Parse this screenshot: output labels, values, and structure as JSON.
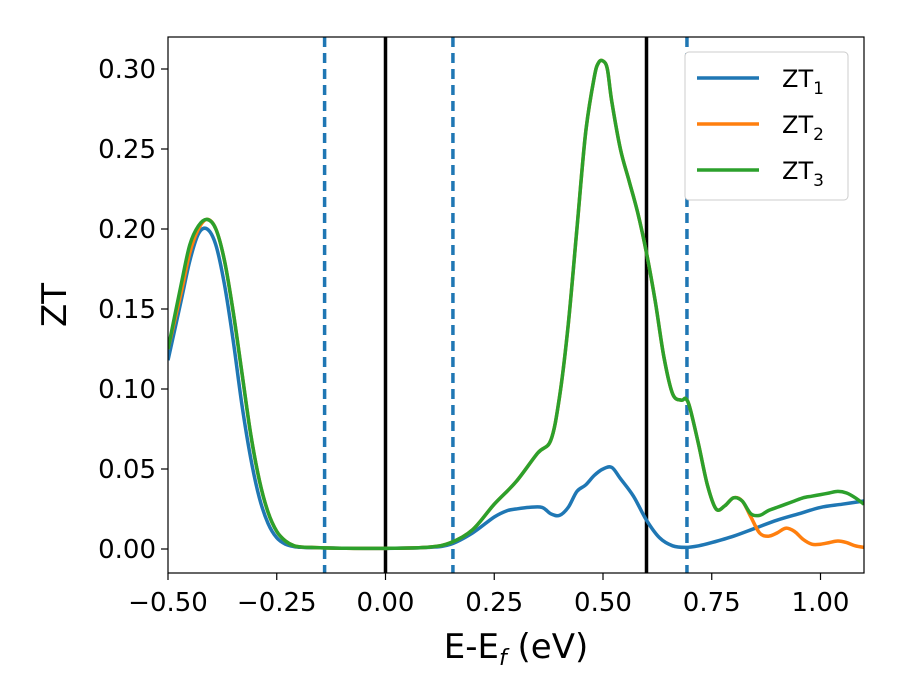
{
  "chart_data": {
    "type": "line",
    "title": "",
    "xlabel": {
      "base": "E-E",
      "sub": "f",
      "suffix": " (eV)"
    },
    "ylabel": "ZT",
    "xlim": [
      -0.5,
      1.1
    ],
    "ylim": [
      -0.015,
      0.32
    ],
    "grid": false,
    "legend_position": "top-right",
    "x_ticks": [
      -0.5,
      -0.25,
      0.0,
      0.25,
      0.5,
      0.75,
      1.0
    ],
    "x_tick_labels": [
      "−0.50",
      "−0.25",
      "0.00",
      "0.25",
      "0.50",
      "0.75",
      "1.00"
    ],
    "y_ticks": [
      0.0,
      0.05,
      0.1,
      0.15,
      0.2,
      0.25,
      0.3
    ],
    "y_tick_labels": [
      "0.00",
      "0.05",
      "0.10",
      "0.15",
      "0.20",
      "0.25",
      "0.30"
    ],
    "series": [
      {
        "name": "ZT",
        "sub": "1",
        "color": "#1f77b4",
        "x": [
          -0.5,
          -0.47,
          -0.45,
          -0.43,
          -0.41,
          -0.39,
          -0.37,
          -0.35,
          -0.33,
          -0.31,
          -0.29,
          -0.27,
          -0.25,
          -0.23,
          -0.21,
          -0.19,
          -0.17,
          -0.15,
          -0.12,
          -0.1,
          0.0,
          0.1,
          0.15,
          0.2,
          0.25,
          0.28,
          0.3,
          0.33,
          0.36,
          0.38,
          0.4,
          0.42,
          0.44,
          0.46,
          0.48,
          0.5,
          0.52,
          0.54,
          0.57,
          0.6,
          0.63,
          0.66,
          0.69,
          0.72,
          0.75,
          0.8,
          0.85,
          0.9,
          0.95,
          1.0,
          1.05,
          1.1
        ],
        "y": [
          0.118,
          0.155,
          0.18,
          0.197,
          0.2,
          0.19,
          0.165,
          0.13,
          0.09,
          0.057,
          0.032,
          0.016,
          0.007,
          0.003,
          0.0015,
          0.001,
          0.0008,
          0.0008,
          0.0006,
          0.0005,
          0.0004,
          0.001,
          0.003,
          0.01,
          0.02,
          0.024,
          0.025,
          0.026,
          0.026,
          0.022,
          0.021,
          0.026,
          0.036,
          0.04,
          0.046,
          0.05,
          0.051,
          0.044,
          0.033,
          0.018,
          0.007,
          0.002,
          0.001,
          0.002,
          0.004,
          0.008,
          0.013,
          0.018,
          0.022,
          0.026,
          0.028,
          0.03
        ]
      },
      {
        "name": "ZT",
        "sub": "2",
        "color": "#ff7f0e",
        "x": [
          -0.5,
          -0.47,
          -0.45,
          -0.43,
          -0.41,
          -0.39,
          -0.37,
          -0.35,
          -0.33,
          -0.31,
          -0.29,
          -0.27,
          -0.25,
          -0.23,
          -0.21,
          -0.19,
          -0.17,
          -0.15,
          -0.1,
          0.0,
          0.1,
          0.15,
          0.2,
          0.25,
          0.3,
          0.35,
          0.38,
          0.4,
          0.42,
          0.44,
          0.46,
          0.48,
          0.49,
          0.5,
          0.51,
          0.52,
          0.54,
          0.56,
          0.58,
          0.6,
          0.62,
          0.64,
          0.66,
          0.68,
          0.69,
          0.7,
          0.72,
          0.74,
          0.76,
          0.78,
          0.8,
          0.82,
          0.84,
          0.86,
          0.88,
          0.9,
          0.92,
          0.94,
          0.96,
          0.98,
          1.0,
          1.02,
          1.04,
          1.06,
          1.08,
          1.1
        ],
        "y": [
          0.125,
          0.16,
          0.185,
          0.2,
          0.206,
          0.2,
          0.18,
          0.148,
          0.11,
          0.072,
          0.043,
          0.023,
          0.011,
          0.005,
          0.002,
          0.0012,
          0.001,
          0.0008,
          0.0005,
          0.0004,
          0.0012,
          0.004,
          0.012,
          0.028,
          0.042,
          0.06,
          0.068,
          0.095,
          0.14,
          0.2,
          0.26,
          0.295,
          0.304,
          0.305,
          0.3,
          0.28,
          0.25,
          0.23,
          0.21,
          0.185,
          0.155,
          0.12,
          0.097,
          0.093,
          0.094,
          0.088,
          0.065,
          0.04,
          0.025,
          0.027,
          0.032,
          0.03,
          0.02,
          0.01,
          0.008,
          0.01,
          0.013,
          0.011,
          0.006,
          0.003,
          0.003,
          0.004,
          0.005,
          0.004,
          0.002,
          0.001
        ]
      },
      {
        "name": "ZT",
        "sub": "3",
        "color": "#2ca02c",
        "x": [
          -0.5,
          -0.47,
          -0.45,
          -0.43,
          -0.41,
          -0.39,
          -0.37,
          -0.35,
          -0.33,
          -0.31,
          -0.29,
          -0.27,
          -0.25,
          -0.23,
          -0.21,
          -0.19,
          -0.17,
          -0.15,
          -0.1,
          0.0,
          0.1,
          0.15,
          0.2,
          0.25,
          0.3,
          0.35,
          0.38,
          0.4,
          0.42,
          0.44,
          0.46,
          0.48,
          0.49,
          0.5,
          0.51,
          0.52,
          0.54,
          0.56,
          0.58,
          0.6,
          0.62,
          0.64,
          0.66,
          0.68,
          0.69,
          0.7,
          0.72,
          0.74,
          0.76,
          0.78,
          0.8,
          0.82,
          0.84,
          0.86,
          0.88,
          0.9,
          0.92,
          0.94,
          0.96,
          0.98,
          1.0,
          1.02,
          1.04,
          1.06,
          1.08,
          1.1
        ],
        "y": [
          0.125,
          0.165,
          0.19,
          0.202,
          0.206,
          0.2,
          0.18,
          0.148,
          0.11,
          0.072,
          0.043,
          0.023,
          0.011,
          0.005,
          0.002,
          0.0012,
          0.001,
          0.0008,
          0.0005,
          0.0004,
          0.0012,
          0.004,
          0.012,
          0.028,
          0.042,
          0.06,
          0.068,
          0.095,
          0.14,
          0.2,
          0.26,
          0.295,
          0.304,
          0.305,
          0.3,
          0.28,
          0.25,
          0.23,
          0.21,
          0.185,
          0.155,
          0.12,
          0.097,
          0.093,
          0.094,
          0.088,
          0.065,
          0.04,
          0.025,
          0.027,
          0.032,
          0.03,
          0.022,
          0.021,
          0.024,
          0.026,
          0.028,
          0.03,
          0.032,
          0.033,
          0.034,
          0.035,
          0.036,
          0.035,
          0.032,
          0.028
        ]
      }
    ],
    "vertical_lines": [
      {
        "x": -0.14,
        "style": "dashed",
        "color": "#1f77b4"
      },
      {
        "x": 0.0,
        "style": "solid",
        "color": "#000000"
      },
      {
        "x": 0.155,
        "style": "dashed",
        "color": "#1f77b4"
      },
      {
        "x": 0.6,
        "style": "solid",
        "color": "#000000"
      },
      {
        "x": 0.693,
        "style": "dashed",
        "color": "#1f77b4"
      }
    ]
  }
}
